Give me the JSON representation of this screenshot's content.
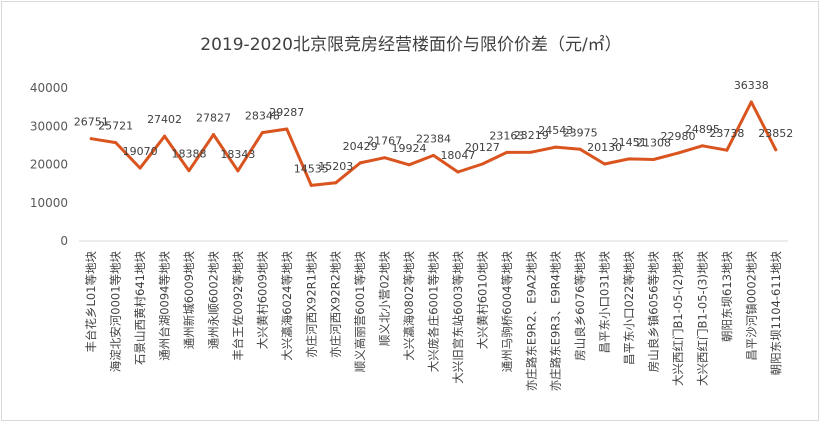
{
  "chart_data": {
    "type": "line",
    "title": "2019-2020北京限竞房经营楼面价与限价价差（元/㎡）",
    "xlabel": "",
    "ylabel": "",
    "ylim": [
      0,
      40000
    ],
    "yticks": [
      "0",
      "10000",
      "20000",
      "30000",
      "40000"
    ],
    "grid": false,
    "legend": "none",
    "line_color": "#d9541e",
    "categories": [
      "丰台花乡L01等地块",
      "海淀北安河0001等地块",
      "石景山西黄村641地块",
      "通州台湖0094等地块",
      "通州新城6009地块",
      "通州永顺6002地块",
      "丰台王佐0092等地块",
      "大兴黄村6009地块",
      "大兴瀛海6024等地块",
      "亦庄河西X92R1地块",
      "亦庄河西X92R2地块",
      "顺义高丽营6001等地块",
      "顺义北小营02地块",
      "大兴瀛海0802等地块",
      "大兴庞各庄6001等地块",
      "大兴旧宫东站6003等地块",
      "大兴黄村6010地块",
      "通州马驹桥6004等地块",
      "亦庄路东E9R2、E9A2地块",
      "亦庄路东E9R3、E9R4地块",
      "房山良乡6076等地块",
      "昌平东小口031地块",
      "昌平东小口022等地块",
      "房山良乡镇6056等地块",
      "大兴西红门B1-05-(2)地块",
      "大兴西红门B1-05-(3)地块",
      "朝阳东坝613地块",
      "昌平沙河镇0002地块",
      "朝阳东坝1104-611地块"
    ],
    "values": [
      26751,
      25721,
      19070,
      27402,
      18388,
      27827,
      18343,
      28348,
      29287,
      14535,
      15203,
      20429,
      21767,
      19924,
      22384,
      18047,
      20127,
      23163,
      23219,
      24543,
      23975,
      20130,
      21451,
      21308,
      22980,
      24895,
      23738,
      36338,
      23852
    ],
    "data_labels": [
      "26751",
      "25721",
      "19070",
      "27402",
      "18388",
      "27827",
      "18343",
      "28348",
      "29287",
      "14535",
      "15203",
      "20429",
      "21767",
      "19924",
      "22384",
      "18047",
      "20127",
      "23163",
      "23219",
      "24543",
      "23975",
      "20130",
      "21451",
      "21308",
      "22980",
      "24895",
      "23738",
      "36338",
      "23852"
    ]
  }
}
